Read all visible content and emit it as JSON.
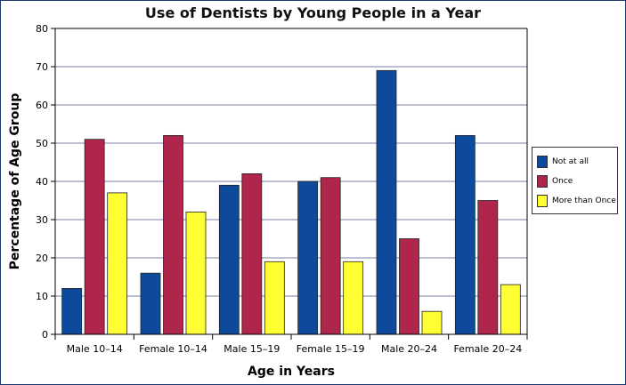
{
  "chart_data": {
    "type": "bar",
    "title": "Use of Dentists by Young People in a Year",
    "xlabel": "Age in Years",
    "ylabel": "Percentage of Age Group",
    "ylim": [
      0,
      80
    ],
    "yticks": [
      0,
      10,
      20,
      30,
      40,
      50,
      60,
      70,
      80
    ],
    "grid": true,
    "legend_position": "right",
    "categories": [
      "Male 10–14",
      "Female 10–14",
      "Male 15–19",
      "Female 15–19",
      "Male 20–24",
      "Female 20–24"
    ],
    "series": [
      {
        "name": "Not at all",
        "color": "#0d4a9c",
        "values": [
          12,
          16,
          39,
          40,
          69,
          52
        ]
      },
      {
        "name": "Once",
        "color": "#b0254c",
        "values": [
          51,
          52,
          42,
          41,
          25,
          35
        ]
      },
      {
        "name": "More than Once",
        "color": "#ffff33",
        "values": [
          37,
          32,
          19,
          19,
          6,
          13
        ]
      }
    ]
  }
}
